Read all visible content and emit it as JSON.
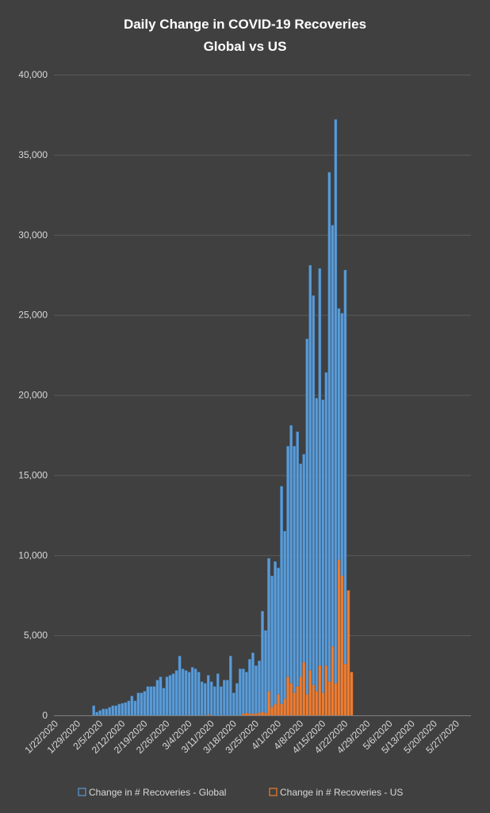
{
  "chart_data": {
    "type": "bar",
    "title": [
      "Daily Change in COVID-19 Recoveries",
      "Global vs US"
    ],
    "xlabel": "",
    "ylabel": "",
    "ylim": [
      0,
      40000
    ],
    "yticks": [
      "0",
      "5,000",
      "10,000",
      "15,000",
      "20,000",
      "25,000",
      "30,000",
      "35,000",
      "40,000"
    ],
    "x_range": [
      "1/22/2020",
      "5/31/2020"
    ],
    "xticks": [
      "1/22/2020",
      "1/29/2020",
      "2/5/2020",
      "2/12/2020",
      "2/19/2020",
      "2/26/2020",
      "3/4/2020",
      "3/11/2020",
      "3/18/2020",
      "3/25/2020",
      "4/1/2020",
      "4/8/2020",
      "4/15/2020",
      "4/22/2020",
      "4/29/2020",
      "5/6/2020",
      "5/13/2020",
      "5/20/2020",
      "5/27/2020"
    ],
    "grid": true,
    "legend_position": "bottom",
    "colors": {
      "global": "#5b9bd5",
      "us": "#ed7d31"
    },
    "series": [
      {
        "name": "Change in # Recoveries - Global",
        "start": "1/23/2020",
        "values": [
          0,
          0,
          0,
          0,
          0,
          0,
          0,
          0,
          0,
          0,
          0,
          600,
          200,
          300,
          400,
          400,
          500,
          600,
          600,
          700,
          750,
          800,
          900,
          1200,
          900,
          1400,
          1400,
          1500,
          1800,
          1800,
          1800,
          2200,
          2400,
          1700,
          2400,
          2500,
          2600,
          2800,
          3700,
          2900,
          2800,
          2700,
          3000,
          2900,
          2700,
          2100,
          2000,
          2500,
          2100,
          1800,
          2600,
          1800,
          2200,
          2200,
          3700,
          1400,
          2000,
          2900,
          2900,
          2700,
          3500,
          3900,
          3100,
          3400,
          6500,
          5300,
          9800,
          8700,
          9600,
          9200,
          14300,
          11500,
          16800,
          18100,
          16800,
          17700,
          15700,
          16300,
          23500,
          28100,
          26200,
          19800,
          27900,
          19700,
          21400,
          33900,
          30600,
          37200,
          25400,
          25100,
          27800
        ]
      },
      {
        "name": "Change in # Recoveries - US",
        "start": "1/23/2020",
        "values": [
          0,
          0,
          0,
          0,
          0,
          0,
          0,
          0,
          0,
          0,
          0,
          0,
          0,
          0,
          0,
          0,
          0,
          0,
          0,
          0,
          0,
          0,
          0,
          0,
          0,
          0,
          0,
          0,
          0,
          0,
          0,
          0,
          0,
          0,
          0,
          0,
          0,
          0,
          0,
          0,
          0,
          0,
          0,
          0,
          0,
          0,
          0,
          50,
          0,
          0,
          0,
          0,
          0,
          0,
          0,
          0,
          0,
          0,
          100,
          150,
          100,
          100,
          100,
          150,
          200,
          150,
          1500,
          500,
          700,
          1300,
          700,
          1000,
          2400,
          2000,
          1400,
          1800,
          2400,
          3300,
          1300,
          2800,
          1900,
          1500,
          3100,
          1400,
          3100,
          2100,
          4300,
          2000,
          9700,
          8700,
          3200,
          7800,
          2700
        ]
      }
    ]
  }
}
